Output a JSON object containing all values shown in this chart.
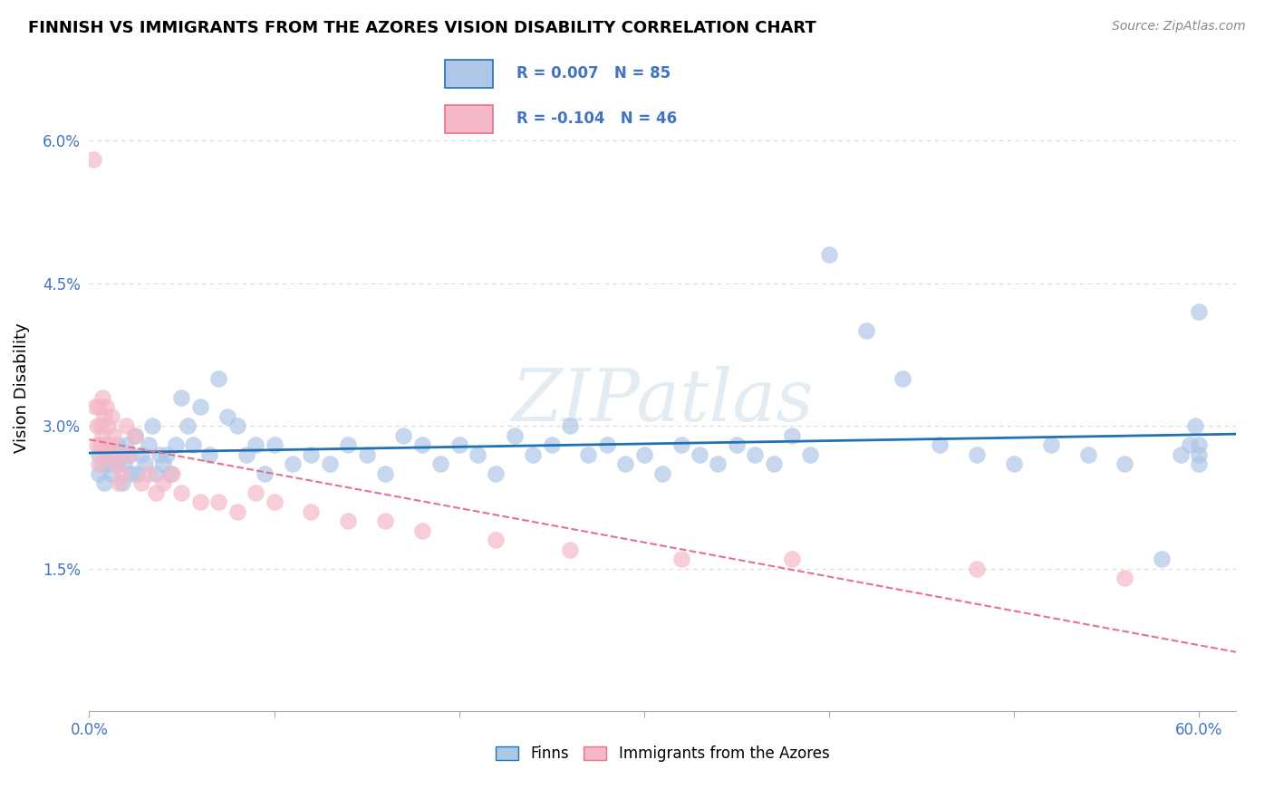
{
  "title": "FINNISH VS IMMIGRANTS FROM THE AZORES VISION DISABILITY CORRELATION CHART",
  "source": "Source: ZipAtlas.com",
  "ylabel": "Vision Disability",
  "xlim": [
    0.0,
    0.62
  ],
  "ylim": [
    0.0,
    0.068
  ],
  "xtick_positions": [
    0.0,
    0.1,
    0.2,
    0.3,
    0.4,
    0.5,
    0.6
  ],
  "xticklabels": [
    "0.0%",
    "",
    "",
    "",
    "",
    "",
    "60.0%"
  ],
  "ytick_positions": [
    0.015,
    0.03,
    0.045,
    0.06
  ],
  "ytick_labels": [
    "1.5%",
    "3.0%",
    "4.5%",
    "6.0%"
  ],
  "legend_r_finns": "R = 0.007",
  "legend_n_finns": "N = 85",
  "legend_r_azores": "R = -0.104",
  "legend_n_azores": "N = 46",
  "color_finns": "#aec6e8",
  "color_azores": "#f4b8c8",
  "trendline_finns_color": "#2171b5",
  "trendline_azores_color": "#e8708a",
  "background_color": "#ffffff",
  "grid_color": "#d8d8d8",
  "finns_x": [
    0.005,
    0.005,
    0.007,
    0.008,
    0.01,
    0.01,
    0.012,
    0.013,
    0.015,
    0.015,
    0.018,
    0.019,
    0.02,
    0.022,
    0.023,
    0.025,
    0.026,
    0.028,
    0.03,
    0.032,
    0.034,
    0.036,
    0.038,
    0.04,
    0.042,
    0.044,
    0.047,
    0.05,
    0.053,
    0.056,
    0.06,
    0.065,
    0.07,
    0.075,
    0.08,
    0.085,
    0.09,
    0.095,
    0.1,
    0.11,
    0.12,
    0.13,
    0.14,
    0.15,
    0.16,
    0.17,
    0.18,
    0.19,
    0.2,
    0.21,
    0.22,
    0.23,
    0.24,
    0.25,
    0.26,
    0.27,
    0.28,
    0.29,
    0.3,
    0.31,
    0.32,
    0.33,
    0.34,
    0.35,
    0.36,
    0.37,
    0.38,
    0.39,
    0.4,
    0.42,
    0.44,
    0.46,
    0.48,
    0.5,
    0.52,
    0.54,
    0.56,
    0.58,
    0.59,
    0.595,
    0.598,
    0.6,
    0.6,
    0.6,
    0.6
  ],
  "finns_y": [
    0.027,
    0.025,
    0.026,
    0.024,
    0.028,
    0.026,
    0.025,
    0.027,
    0.026,
    0.028,
    0.024,
    0.026,
    0.028,
    0.027,
    0.025,
    0.029,
    0.025,
    0.027,
    0.026,
    0.028,
    0.03,
    0.025,
    0.027,
    0.026,
    0.027,
    0.025,
    0.028,
    0.033,
    0.03,
    0.028,
    0.032,
    0.027,
    0.035,
    0.031,
    0.03,
    0.027,
    0.028,
    0.025,
    0.028,
    0.026,
    0.027,
    0.026,
    0.028,
    0.027,
    0.025,
    0.029,
    0.028,
    0.026,
    0.028,
    0.027,
    0.025,
    0.029,
    0.027,
    0.028,
    0.03,
    0.027,
    0.028,
    0.026,
    0.027,
    0.025,
    0.028,
    0.027,
    0.026,
    0.028,
    0.027,
    0.026,
    0.029,
    0.027,
    0.048,
    0.04,
    0.035,
    0.028,
    0.027,
    0.026,
    0.028,
    0.027,
    0.026,
    0.016,
    0.027,
    0.028,
    0.03,
    0.027,
    0.028,
    0.026,
    0.042
  ],
  "azores_x": [
    0.002,
    0.003,
    0.004,
    0.004,
    0.005,
    0.005,
    0.006,
    0.006,
    0.007,
    0.007,
    0.008,
    0.008,
    0.009,
    0.009,
    0.01,
    0.011,
    0.012,
    0.013,
    0.014,
    0.015,
    0.016,
    0.018,
    0.02,
    0.022,
    0.025,
    0.028,
    0.032,
    0.036,
    0.04,
    0.045,
    0.05,
    0.06,
    0.07,
    0.08,
    0.09,
    0.1,
    0.12,
    0.14,
    0.16,
    0.18,
    0.22,
    0.26,
    0.32,
    0.38,
    0.48,
    0.56
  ],
  "azores_y": [
    0.058,
    0.032,
    0.03,
    0.028,
    0.032,
    0.026,
    0.03,
    0.028,
    0.033,
    0.029,
    0.031,
    0.027,
    0.032,
    0.028,
    0.03,
    0.028,
    0.031,
    0.029,
    0.026,
    0.027,
    0.024,
    0.025,
    0.03,
    0.027,
    0.029,
    0.024,
    0.025,
    0.023,
    0.024,
    0.025,
    0.023,
    0.022,
    0.022,
    0.021,
    0.023,
    0.022,
    0.021,
    0.02,
    0.02,
    0.019,
    0.018,
    0.017,
    0.016,
    0.016,
    0.015,
    0.014
  ]
}
